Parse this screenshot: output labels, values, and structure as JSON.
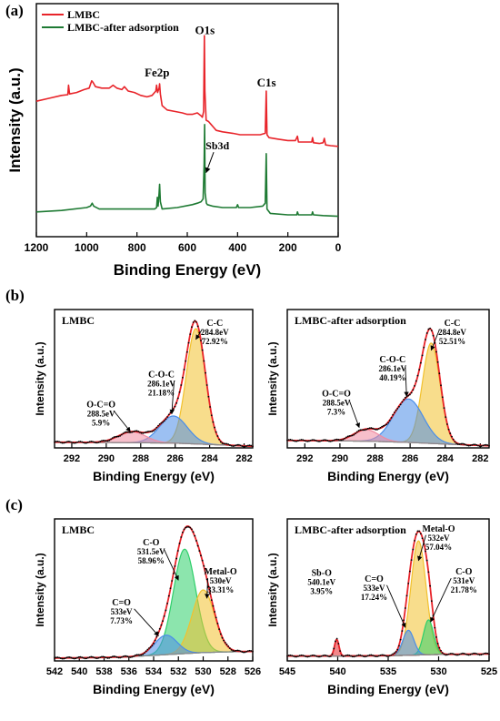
{
  "colors": {
    "red": "#e8242a",
    "green": "#1e7a33",
    "pink": "#f08aa0",
    "blue": "#4a8de8",
    "yellow": "#f2c12e",
    "green_fill": "#2ecf6a",
    "envelope": "#000000",
    "background_line": "#888888"
  },
  "chart_data": [
    {
      "id": "a",
      "panel_label": "(a)",
      "type": "line",
      "xlabel": "Binding Energy (eV)",
      "ylabel": "Intensity (a.u.)",
      "xlim": [
        1200,
        0
      ],
      "x_ticks": [
        1200,
        1000,
        800,
        600,
        400,
        200,
        0
      ],
      "legend": {
        "placement": "top-left",
        "entries": [
          "LMBC",
          "LMBC-after adsorption"
        ]
      },
      "series": [
        {
          "name": "LMBC",
          "color": "red",
          "points": [
            [
              1200,
              0.33
            ],
            [
              1150,
              0.35
            ],
            [
              1100,
              0.37
            ],
            [
              1075,
              0.375
            ],
            [
              1072,
              0.44
            ],
            [
              1068,
              0.38
            ],
            [
              1040,
              0.39
            ],
            [
              1010,
              0.41
            ],
            [
              990,
              0.42
            ],
            [
              980,
              0.47
            ],
            [
              975,
              0.46
            ],
            [
              965,
              0.43
            ],
            [
              940,
              0.42
            ],
            [
              910,
              0.42
            ],
            [
              895,
              0.44
            ],
            [
              880,
              0.42
            ],
            [
              860,
              0.41
            ],
            [
              850,
              0.43
            ],
            [
              835,
              0.4
            ],
            [
              810,
              0.39
            ],
            [
              785,
              0.37
            ],
            [
              760,
              0.36
            ],
            [
              740,
              0.37
            ],
            [
              725,
              0.4
            ],
            [
              722,
              0.44
            ],
            [
              718,
              0.39
            ],
            [
              712,
              0.42
            ],
            [
              710,
              0.45
            ],
            [
              707,
              0.38
            ],
            [
              700,
              0.3
            ],
            [
              680,
              0.27
            ],
            [
              650,
              0.26
            ],
            [
              620,
              0.25
            ],
            [
              600,
              0.24
            ],
            [
              580,
              0.24
            ],
            [
              560,
              0.25
            ],
            [
              545,
              0.23
            ],
            [
              540,
              0.22
            ],
            [
              535,
              0.26
            ],
            [
              532,
              0.78
            ],
            [
              530,
              0.4
            ],
            [
              525,
              0.2
            ],
            [
              515,
              0.19
            ],
            [
              505,
              0.17
            ],
            [
              495,
              0.15
            ],
            [
              485,
              0.13
            ],
            [
              460,
              0.12
            ],
            [
              420,
              0.11
            ],
            [
              390,
              0.1
            ],
            [
              350,
              0.1
            ],
            [
              310,
              0.1
            ],
            [
              290,
              0.11
            ],
            [
              286,
              0.4
            ],
            [
              283,
              0.1
            ],
            [
              275,
              0.08
            ],
            [
              240,
              0.07
            ],
            [
              200,
              0.06
            ],
            [
              170,
              0.06
            ],
            [
              162,
              0.09
            ],
            [
              158,
              0.05
            ],
            [
              130,
              0.05
            ],
            [
              105,
              0.05
            ],
            [
              102,
              0.08
            ],
            [
              98,
              0.045
            ],
            [
              75,
              0.04
            ],
            [
              60,
              0.045
            ],
            [
              55,
              0.075
            ],
            [
              50,
              0.03
            ],
            [
              30,
              0.025
            ],
            [
              0,
              0.02
            ]
          ]
        },
        {
          "name": "LMBC-after adsorption",
          "color": "green",
          "points": [
            [
              1200,
              -0.43
            ],
            [
              1100,
              -0.42
            ],
            [
              1000,
              -0.4
            ],
            [
              985,
              -0.39
            ],
            [
              978,
              -0.37
            ],
            [
              972,
              -0.39
            ],
            [
              950,
              -0.41
            ],
            [
              900,
              -0.41
            ],
            [
              800,
              -0.41
            ],
            [
              730,
              -0.41
            ],
            [
              722,
              -0.4
            ],
            [
              719,
              -0.33
            ],
            [
              716,
              -0.39
            ],
            [
              712,
              -0.3
            ],
            [
              710,
              -0.24
            ],
            [
              707,
              -0.36
            ],
            [
              700,
              -0.41
            ],
            [
              640,
              -0.4
            ],
            [
              580,
              -0.38
            ],
            [
              560,
              -0.37
            ],
            [
              545,
              -0.36
            ],
            [
              537,
              -0.34
            ],
            [
              533,
              -0.1
            ],
            [
              531,
              0.17
            ],
            [
              529,
              -0.3
            ],
            [
              524,
              -0.37
            ],
            [
              520,
              -0.38
            ],
            [
              500,
              -0.39
            ],
            [
              460,
              -0.4
            ],
            [
              420,
              -0.4
            ],
            [
              405,
              -0.4
            ],
            [
              400,
              -0.38
            ],
            [
              396,
              -0.4
            ],
            [
              350,
              -0.4
            ],
            [
              300,
              -0.39
            ],
            [
              290,
              -0.37
            ],
            [
              286,
              -0.03
            ],
            [
              283,
              -0.41
            ],
            [
              270,
              -0.44
            ],
            [
              200,
              -0.45
            ],
            [
              165,
              -0.45
            ],
            [
              162,
              -0.43
            ],
            [
              158,
              -0.45
            ],
            [
              105,
              -0.45
            ],
            [
              102,
              -0.43
            ],
            [
              98,
              -0.45
            ],
            [
              60,
              -0.455
            ],
            [
              0,
              -0.46
            ]
          ]
        }
      ],
      "annotations": [
        {
          "text": "O1s",
          "x": 530,
          "y": 0.79,
          "size": 13
        },
        {
          "text": "Fe2p",
          "x": 720,
          "y": 0.5,
          "size": 13
        },
        {
          "text": "C1s",
          "x": 285,
          "y": 0.43,
          "size": 13
        },
        {
          "text": "Sb3d",
          "x": 480,
          "y": 0.0,
          "size": 12
        }
      ],
      "arrows": [
        {
          "from": [
            495,
            -0.02
          ],
          "to": [
            525,
            -0.16
          ]
        }
      ]
    },
    {
      "id": "b1",
      "panel_label": "(b)",
      "type": "line",
      "sample_label": "LMBC",
      "xlabel": "Binding Energy (eV)",
      "ylabel": "Intensity (a.u.)",
      "xlim": [
        293,
        281.5
      ],
      "x_ticks": [
        292,
        290,
        288,
        286,
        284,
        282
      ],
      "fit": {
        "baseline": [
          [
            293,
            0.042
          ],
          [
            290,
            0.04
          ],
          [
            288,
            0.038
          ],
          [
            286,
            0.035
          ],
          [
            284,
            0.025
          ],
          [
            282,
            0.015
          ],
          [
            281.5,
            0.012
          ]
        ],
        "peaks": [
          {
            "center": 284.8,
            "height": 0.85,
            "sigma": 0.55,
            "color": "yellow"
          },
          {
            "center": 286.1,
            "height": 0.2,
            "sigma": 0.8,
            "color": "blue"
          },
          {
            "center": 288.5,
            "height": 0.08,
            "sigma": 0.8,
            "color": "pink"
          }
        ]
      },
      "peak_labels": [
        {
          "lines": [
            "C-C",
            "284.8eV",
            "72.92%"
          ],
          "x": 283.7,
          "y": 0.9,
          "arrow_to": [
            284.8,
            0.8
          ]
        },
        {
          "lines": [
            "C-O-C",
            "286.1eV",
            "21.18%"
          ],
          "x": 286.8,
          "y": 0.52,
          "arrow_to": [
            286.2,
            0.25
          ]
        },
        {
          "lines": [
            "O-C=O",
            "288.5eV",
            "5.9%"
          ],
          "x": 290.3,
          "y": 0.3,
          "arrow_to": [
            288.6,
            0.12
          ]
        }
      ]
    },
    {
      "id": "b2",
      "type": "line",
      "sample_label": "LMBC-after adsorption",
      "xlabel": "Binding Energy (eV)",
      "ylabel": "Intensity (a.u.)",
      "xlim": [
        293,
        281.5
      ],
      "x_ticks": [
        292,
        290,
        288,
        286,
        284,
        282
      ],
      "fit": {
        "baseline": [
          [
            293,
            0.055
          ],
          [
            290,
            0.052
          ],
          [
            288,
            0.048
          ],
          [
            286,
            0.04
          ],
          [
            284,
            0.028
          ],
          [
            282,
            0.018
          ],
          [
            281.5,
            0.016
          ]
        ],
        "peaks": [
          {
            "center": 284.8,
            "height": 0.74,
            "sigma": 0.5,
            "color": "yellow"
          },
          {
            "center": 286.1,
            "height": 0.32,
            "sigma": 0.85,
            "color": "blue"
          },
          {
            "center": 288.5,
            "height": 0.085,
            "sigma": 0.7,
            "color": "pink"
          }
        ]
      },
      "peak_labels": [
        {
          "lines": [
            "C-C",
            "284.8eV",
            "52.51%"
          ],
          "x": 283.6,
          "y": 0.9,
          "arrow_to": [
            284.8,
            0.72
          ]
        },
        {
          "lines": [
            "C-O-C",
            "286.1eV",
            "40.19%"
          ],
          "x": 287.0,
          "y": 0.63,
          "arrow_to": [
            286.2,
            0.38
          ]
        },
        {
          "lines": [
            "O-C=O",
            "288.5eV",
            "7.3%"
          ],
          "x": 290.2,
          "y": 0.38,
          "arrow_to": [
            288.9,
            0.15
          ]
        }
      ]
    },
    {
      "id": "c1",
      "panel_label": "(c)",
      "type": "line",
      "sample_label": "LMBC",
      "xlabel": "Binding Energy (eV)",
      "ylabel": "Intensity (a.u.)",
      "xlim": [
        542,
        526
      ],
      "x_ticks": [
        542,
        540,
        538,
        536,
        534,
        532,
        530,
        528,
        526
      ],
      "fit": {
        "baseline": [
          [
            542,
            0.02
          ],
          [
            538,
            0.025
          ],
          [
            536,
            0.03
          ],
          [
            534,
            0.04
          ],
          [
            532,
            0.05
          ],
          [
            530,
            0.06
          ],
          [
            528,
            0.065
          ],
          [
            526,
            0.068
          ]
        ],
        "peaks": [
          {
            "center": 531.5,
            "height": 0.75,
            "sigma": 0.9,
            "color": "green_fill"
          },
          {
            "center": 530.0,
            "height": 0.45,
            "sigma": 0.9,
            "color": "yellow"
          },
          {
            "center": 533.0,
            "height": 0.14,
            "sigma": 0.9,
            "color": "blue"
          }
        ]
      },
      "peak_labels": [
        {
          "lines": [
            "C-O",
            "531.5eV",
            "58.96%"
          ],
          "x": 534.2,
          "y": 0.83,
          "arrow_to": [
            532.0,
            0.58
          ]
        },
        {
          "lines": [
            "Metal-O",
            "530eV",
            "33.31%"
          ],
          "x": 528.6,
          "y": 0.62,
          "arrow_to": [
            529.7,
            0.45
          ]
        },
        {
          "lines": [
            "C=O",
            "533eV",
            "7.73%"
          ],
          "x": 536.6,
          "y": 0.4,
          "arrow_to": [
            533.6,
            0.18
          ]
        }
      ]
    },
    {
      "id": "c2",
      "type": "line",
      "sample_label": "LMBC-after adsorption",
      "xlabel": "Binding Energy (eV)",
      "ylabel": "Intensity (a.u.)",
      "xlim": [
        545,
        525
      ],
      "x_ticks": [
        545,
        540,
        535,
        530,
        525
      ],
      "fit": {
        "baseline": [
          [
            545,
            0.035
          ],
          [
            540,
            0.035
          ],
          [
            535,
            0.038
          ],
          [
            533,
            0.04
          ],
          [
            531,
            0.045
          ],
          [
            528,
            0.048
          ],
          [
            525,
            0.05
          ]
        ],
        "peaks": [
          {
            "center": 532.0,
            "height": 0.82,
            "sigma": 0.75,
            "color": "yellow"
          },
          {
            "center": 531.0,
            "height": 0.25,
            "sigma": 0.5,
            "color": "green_fill"
          },
          {
            "center": 533.0,
            "height": 0.18,
            "sigma": 0.55,
            "color": "blue"
          },
          {
            "center": 540.1,
            "height": 0.12,
            "sigma": 0.22,
            "color": "red"
          }
        ]
      },
      "peak_labels": [
        {
          "lines": [
            "Metal-O",
            "532eV",
            "57.04%"
          ],
          "x": 530.0,
          "y": 0.93,
          "arrow_to": [
            532.0,
            0.72
          ]
        },
        {
          "lines": [
            "C-O",
            "531eV",
            "21.78%"
          ],
          "x": 527.5,
          "y": 0.62,
          "arrow_to": [
            530.8,
            0.28
          ]
        },
        {
          "lines": [
            "C=O",
            "533eV",
            "17.24%"
          ],
          "x": 536.4,
          "y": 0.57,
          "arrow_to": [
            533.3,
            0.24
          ]
        },
        {
          "lines": [
            "Sb-O",
            "540.1eV",
            "3.95%"
          ],
          "x": 541.6,
          "y": 0.61,
          "arrow_to": null
        }
      ]
    }
  ]
}
